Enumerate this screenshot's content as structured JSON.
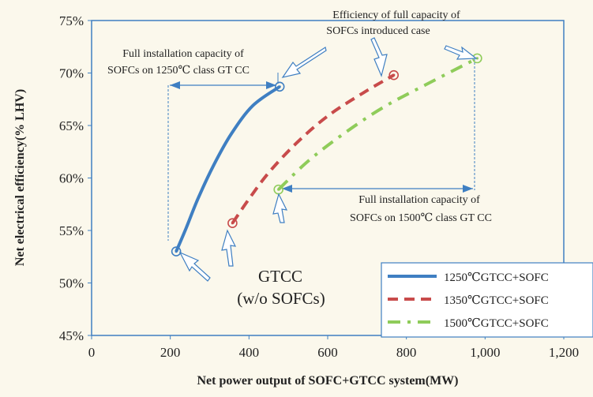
{
  "chart_data": {
    "type": "line",
    "xlabel": "Net power output of SOFC+GTCC system(MW)",
    "ylabel": "Net electrical efficiency(% LHV)",
    "xlim": [
      0,
      1200
    ],
    "ylim": [
      45,
      75
    ],
    "x_ticks": [
      0,
      200,
      400,
      600,
      800,
      1000,
      1200
    ],
    "x_tick_labels": [
      "0",
      "200",
      "400",
      "600",
      "800",
      "1,000",
      "1,200"
    ],
    "y_ticks": [
      45,
      50,
      55,
      60,
      65,
      70,
      75
    ],
    "y_tick_labels": [
      "45%",
      "50%",
      "55%",
      "60%",
      "65%",
      "70%",
      "75%"
    ],
    "grid": false,
    "legend": "bottom-right",
    "series": [
      {
        "name": "1250℃GTCC+SOFC",
        "color": "#3f7fc2",
        "dash": "solid",
        "points": [
          [
            215,
            53.0
          ],
          [
            240,
            55.2
          ],
          [
            270,
            58.0
          ],
          [
            310,
            61.2
          ],
          [
            355,
            64.2
          ],
          [
            410,
            66.9
          ],
          [
            478,
            68.7
          ]
        ]
      },
      {
        "name": "1350℃GTCC+SOFC",
        "color": "#c84b4b",
        "dash": "dashed",
        "points": [
          [
            358,
            55.7
          ],
          [
            400,
            58.0
          ],
          [
            450,
            60.5
          ],
          [
            520,
            63.3
          ],
          [
            600,
            65.9
          ],
          [
            690,
            68.1
          ],
          [
            768,
            69.8
          ]
        ]
      },
      {
        "name": "1500℃GTCC+SOFC",
        "color": "#8fcc5a",
        "dash": "dashdot",
        "points": [
          [
            475,
            58.9
          ],
          [
            550,
            61.6
          ],
          [
            640,
            64.2
          ],
          [
            740,
            66.7
          ],
          [
            850,
            68.9
          ],
          [
            980,
            71.4
          ]
        ]
      }
    ],
    "annotations": [
      {
        "line1": "Efficiency of full capacity of",
        "line2": "SOFCs introduced case"
      },
      {
        "line1": "Full installation capacity of",
        "line2": "SOFCs on 1250℃ class GT CC"
      },
      {
        "line1": "Full installation capacity of",
        "line2": "SOFCs on 1500℃ class GT CC"
      },
      {
        "line1": "GTCC",
        "line2": "(w/o SOFCs)"
      }
    ]
  }
}
